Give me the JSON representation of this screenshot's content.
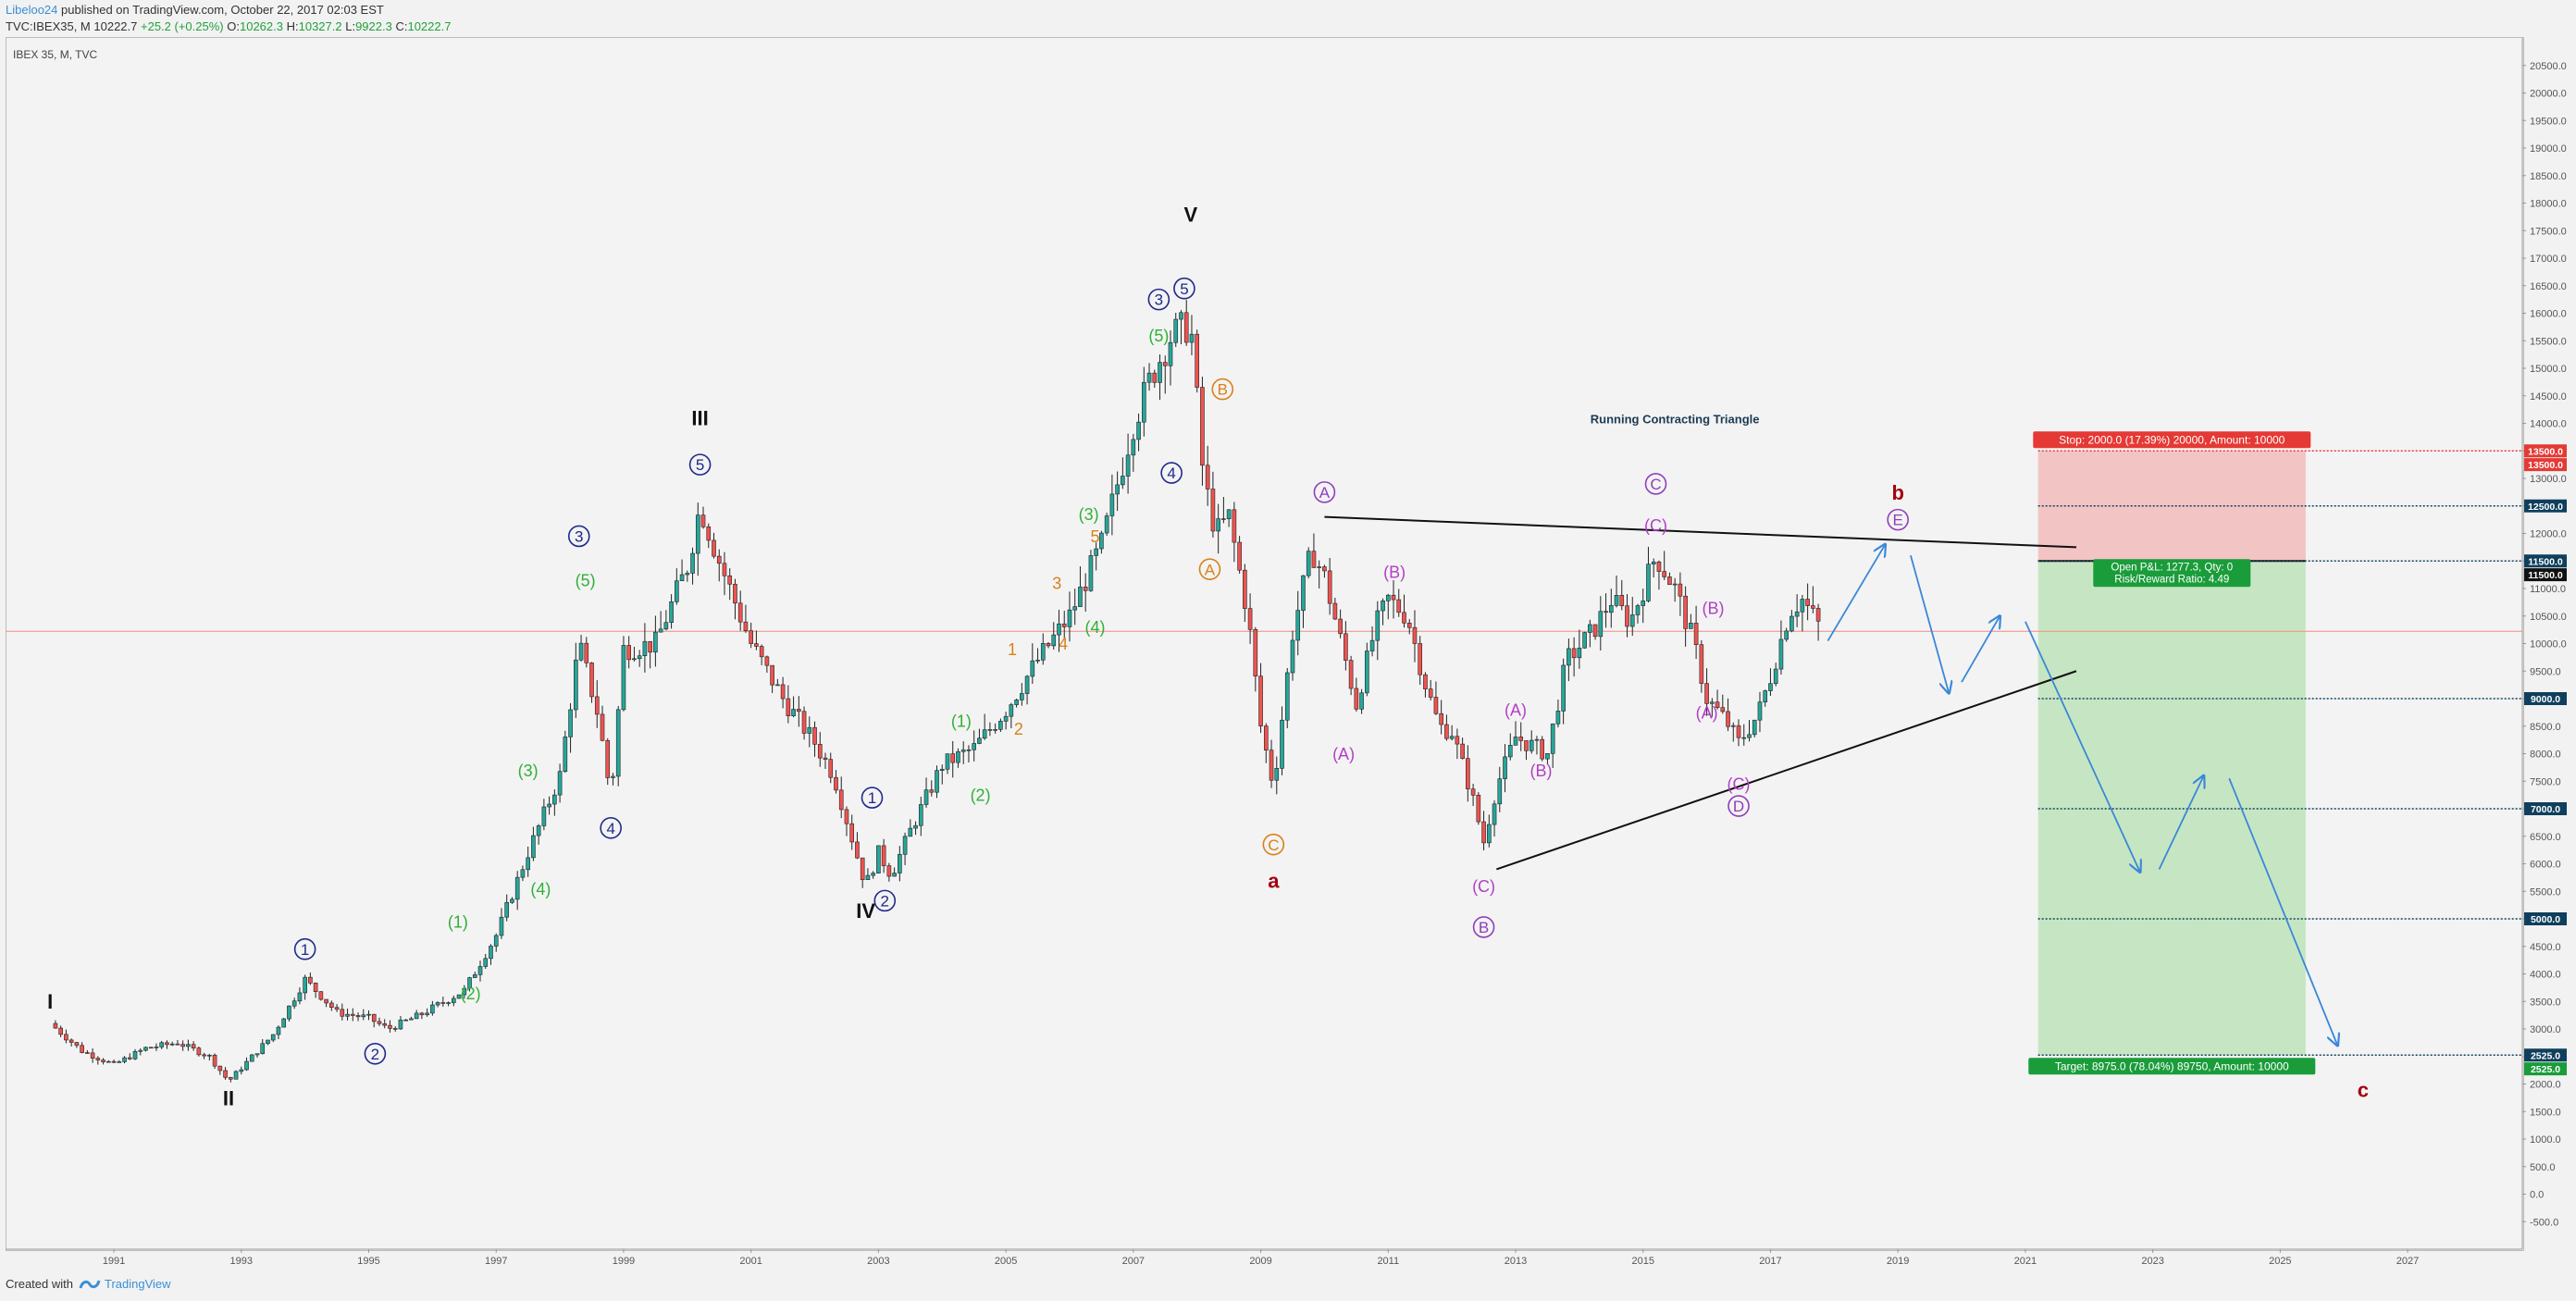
{
  "header": {
    "author": "Libeloo24",
    "published": "published on TradingView.com, October 22, 2017 02:03 EST",
    "symbol_line_prefix": "TVC:IBEX35, M",
    "last": "10222.7",
    "change": "+25.2 (+0.25%)",
    "o_label": "O:",
    "o": "10262.3",
    "h_label": "H:",
    "h": "10327.2",
    "l_label": "L:",
    "l": "9922.3",
    "c_label": "C:",
    "c": "10222.7"
  },
  "chart_label": "IBEX 35, M, TVC",
  "footer": {
    "created_with": "Created with",
    "brand": "TradingView"
  },
  "chart_data": {
    "type": "candlestick",
    "x_range": [
      1989.3,
      2028.8
    ],
    "y_range": [
      -1000,
      21000
    ],
    "x_ticks": [
      "1991",
      "1993",
      "1995",
      "1997",
      "1999",
      "2001",
      "2003",
      "2005",
      "2007",
      "2009",
      "2011",
      "2013",
      "2015",
      "2017",
      "2019",
      "2021",
      "2023",
      "2025",
      "2027"
    ],
    "y_ticks": [
      "20500.0",
      "20000.0",
      "19500.0",
      "19000.0",
      "18500.0",
      "18000.0",
      "17500.0",
      "17000.0",
      "16500.0",
      "16000.0",
      "15500.0",
      "15000.0",
      "14500.0",
      "14000.0",
      "13500.0",
      "13000.0",
      "12500.0",
      "12000.0",
      "11500.0",
      "11000.0",
      "10500.0",
      "10000.0",
      "9500.0",
      "9000.0",
      "8500.0",
      "8000.0",
      "7500.0",
      "7000.0",
      "6500.0",
      "6000.0",
      "5500.0",
      "5000.0",
      "4500.0",
      "4000.0",
      "3500.0",
      "3000.0",
      "2500.0",
      "2000.0",
      "1500.0",
      "1000.0",
      "500.0",
      "0.0",
      "-500.0"
    ],
    "price_anchors": [
      [
        1990.0,
        3100
      ],
      [
        1990.5,
        2600
      ],
      [
        1991.0,
        2350
      ],
      [
        1991.5,
        2650
      ],
      [
        1992.0,
        2750
      ],
      [
        1992.5,
        2500
      ],
      [
        1992.8,
        2050
      ],
      [
        1993.5,
        2900
      ],
      [
        1994.0,
        3900
      ],
      [
        1994.5,
        3300
      ],
      [
        1995.0,
        3200
      ],
      [
        1995.3,
        3000
      ],
      [
        1995.8,
        3250
      ],
      [
        1996.5,
        3700
      ],
      [
        1997.0,
        4700
      ],
      [
        1997.5,
        6200
      ],
      [
        1998.0,
        7600
      ],
      [
        1998.3,
        10000
      ],
      [
        1998.6,
        8700
      ],
      [
        1998.8,
        7200
      ],
      [
        1999.0,
        9900
      ],
      [
        1999.5,
        10000
      ],
      [
        2000.0,
        11400
      ],
      [
        2000.2,
        12500
      ],
      [
        2000.5,
        11500
      ],
      [
        2001.0,
        10000
      ],
      [
        2001.5,
        9000
      ],
      [
        2002.0,
        8200
      ],
      [
        2002.3,
        7600
      ],
      [
        2002.8,
        5600
      ],
      [
        2003.0,
        6200
      ],
      [
        2003.2,
        5800
      ],
      [
        2003.5,
        6600
      ],
      [
        2004.0,
        7800
      ],
      [
        2004.5,
        8100
      ],
      [
        2005.0,
        8800
      ],
      [
        2005.5,
        9700
      ],
      [
        2006.0,
        10500
      ],
      [
        2006.5,
        11800
      ],
      [
        2007.0,
        14000
      ],
      [
        2007.3,
        14900
      ],
      [
        2007.6,
        15600
      ],
      [
        2007.9,
        15800
      ],
      [
        2008.1,
        13000
      ],
      [
        2008.3,
        12000
      ],
      [
        2008.5,
        12300
      ],
      [
        2008.8,
        10500
      ],
      [
        2009.0,
        8500
      ],
      [
        2009.2,
        7400
      ],
      [
        2009.5,
        10200
      ],
      [
        2009.8,
        11700
      ],
      [
        2010.0,
        11200
      ],
      [
        2010.2,
        10300
      ],
      [
        2010.5,
        8900
      ],
      [
        2010.8,
        10300
      ],
      [
        2011.0,
        10800
      ],
      [
        2011.3,
        10500
      ],
      [
        2011.6,
        9200
      ],
      [
        2011.8,
        8500
      ],
      [
        2012.0,
        8400
      ],
      [
        2012.3,
        7300
      ],
      [
        2012.5,
        6400
      ],
      [
        2012.7,
        7400
      ],
      [
        2013.0,
        8300
      ],
      [
        2013.5,
        8000
      ],
      [
        2013.8,
        9700
      ],
      [
        2014.2,
        10200
      ],
      [
        2014.5,
        10800
      ],
      [
        2014.8,
        10400
      ],
      [
        2015.2,
        11600
      ],
      [
        2015.5,
        11000
      ],
      [
        2015.8,
        10000
      ],
      [
        2016.0,
        9000
      ],
      [
        2016.3,
        8600
      ],
      [
        2016.5,
        8200
      ],
      [
        2016.8,
        8700
      ],
      [
        2017.0,
        9400
      ],
      [
        2017.3,
        10600
      ],
      [
        2017.5,
        10800
      ],
      [
        2017.8,
        10250
      ]
    ],
    "annotations": [
      {
        "text": "I",
        "x": 1990.0,
        "y": 3500,
        "style": "bold-black"
      },
      {
        "text": "II",
        "x": 1992.8,
        "y": 1750,
        "style": "bold-black"
      },
      {
        "text": "III",
        "x": 2000.2,
        "y": 14100,
        "style": "bold-black"
      },
      {
        "text": "IV",
        "x": 2002.8,
        "y": 5150,
        "style": "bold-black"
      },
      {
        "text": "V",
        "x": 2007.9,
        "y": 17800,
        "style": "bold-black"
      },
      {
        "text": "1",
        "x": 1994.0,
        "y": 4450,
        "style": "circle-navy"
      },
      {
        "text": "2",
        "x": 1995.1,
        "y": 2550,
        "style": "circle-navy"
      },
      {
        "text": "3",
        "x": 1998.3,
        "y": 11950,
        "style": "circle-navy"
      },
      {
        "text": "4",
        "x": 1998.8,
        "y": 6650,
        "style": "circle-navy"
      },
      {
        "text": "5",
        "x": 2000.2,
        "y": 13250,
        "style": "circle-navy"
      },
      {
        "text": "1",
        "x": 2002.9,
        "y": 7200,
        "style": "circle-navy"
      },
      {
        "text": "2",
        "x": 2003.1,
        "y": 5330,
        "style": "circle-navy"
      },
      {
        "text": "3",
        "x": 2007.4,
        "y": 16250,
        "style": "circle-navy"
      },
      {
        "text": "4",
        "x": 2007.6,
        "y": 13100,
        "style": "circle-navy"
      },
      {
        "text": "5",
        "x": 2007.8,
        "y": 16450,
        "style": "circle-navy"
      },
      {
        "text": "(1)",
        "x": 1996.4,
        "y": 4950,
        "style": "green"
      },
      {
        "text": "(2)",
        "x": 1996.6,
        "y": 3650,
        "style": "green"
      },
      {
        "text": "(3)",
        "x": 1997.5,
        "y": 7700,
        "style": "green"
      },
      {
        "text": "(4)",
        "x": 1997.7,
        "y": 5550,
        "style": "green"
      },
      {
        "text": "(5)",
        "x": 1998.4,
        "y": 11150,
        "style": "green"
      },
      {
        "text": "(1)",
        "x": 2004.3,
        "y": 8600,
        "style": "green"
      },
      {
        "text": "(2)",
        "x": 2004.6,
        "y": 7250,
        "style": "green"
      },
      {
        "text": "(3)",
        "x": 2006.3,
        "y": 12350,
        "style": "green"
      },
      {
        "text": "(4)",
        "x": 2006.4,
        "y": 10300,
        "style": "green"
      },
      {
        "text": "(5)",
        "x": 2007.4,
        "y": 15600,
        "style": "green"
      },
      {
        "text": "1",
        "x": 2005.1,
        "y": 9900,
        "style": "orange"
      },
      {
        "text": "2",
        "x": 2005.2,
        "y": 8450,
        "style": "orange"
      },
      {
        "text": "3",
        "x": 2005.8,
        "y": 11100,
        "style": "orange"
      },
      {
        "text": "4",
        "x": 2005.9,
        "y": 10000,
        "style": "orange"
      },
      {
        "text": "5",
        "x": 2006.4,
        "y": 11950,
        "style": "orange"
      },
      {
        "text": "A",
        "x": 2008.2,
        "y": 11350,
        "style": "circle-orange"
      },
      {
        "text": "B",
        "x": 2008.4,
        "y": 14620,
        "style": "circle-orange"
      },
      {
        "text": "C",
        "x": 2009.2,
        "y": 6350,
        "style": "circle-orange"
      },
      {
        "text": "a",
        "x": 2009.2,
        "y": 5700,
        "style": "bold-darkred"
      },
      {
        "text": "A",
        "x": 2010.0,
        "y": 12750,
        "style": "circle-purple"
      },
      {
        "text": "(A)",
        "x": 2010.3,
        "y": 8000,
        "style": "magenta"
      },
      {
        "text": "(B)",
        "x": 2011.1,
        "y": 11300,
        "style": "magenta"
      },
      {
        "text": "(C)",
        "x": 2012.5,
        "y": 5600,
        "style": "magenta"
      },
      {
        "text": "B",
        "x": 2012.5,
        "y": 4850,
        "style": "circle-purple"
      },
      {
        "text": "(A)",
        "x": 2013.0,
        "y": 8800,
        "style": "magenta"
      },
      {
        "text": "(B)",
        "x": 2013.4,
        "y": 7700,
        "style": "magenta"
      },
      {
        "text": "C",
        "x": 2015.2,
        "y": 12900,
        "style": "circle-purple"
      },
      {
        "text": "(C)",
        "x": 2015.2,
        "y": 12150,
        "style": "magenta"
      },
      {
        "text": "(B)",
        "x": 2016.1,
        "y": 10650,
        "style": "magenta"
      },
      {
        "text": "(A)",
        "x": 2016.0,
        "y": 8750,
        "style": "magenta"
      },
      {
        "text": "(C)",
        "x": 2016.5,
        "y": 7450,
        "style": "magenta"
      },
      {
        "text": "D",
        "x": 2016.5,
        "y": 7050,
        "style": "circle-purple"
      },
      {
        "text": "E",
        "x": 2019.0,
        "y": 12250,
        "style": "circle-purple"
      },
      {
        "text": "b",
        "x": 2019.0,
        "y": 12750,
        "style": "bold-darkred"
      },
      {
        "text": "c",
        "x": 2026.3,
        "y": 1900,
        "style": "bold-darkred"
      }
    ],
    "triangle_label": "Running Contracting Triangle",
    "triangle_label_pos": [
      2015.5,
      14000
    ],
    "trendlines": [
      {
        "x1": 2010.0,
        "y1": 12300,
        "x2": 2021.8,
        "y2": 11750
      },
      {
        "x1": 2012.7,
        "y1": 5900,
        "x2": 2021.8,
        "y2": 9500
      }
    ],
    "forecast_arrows": [
      [
        [
          2017.9,
          10050
        ],
        [
          2018.8,
          11800
        ]
      ],
      [
        [
          2019.2,
          11600
        ],
        [
          2019.8,
          9100
        ]
      ],
      [
        [
          2020.0,
          9300
        ],
        [
          2020.6,
          10500
        ]
      ],
      [
        [
          2021.0,
          10400
        ],
        [
          2022.8,
          5850
        ]
      ],
      [
        [
          2023.1,
          5900
        ],
        [
          2023.8,
          7600
        ]
      ],
      [
        [
          2024.2,
          7550
        ],
        [
          2025.9,
          2700
        ]
      ]
    ],
    "horizontal_levels": [
      13500,
      12500,
      11500,
      9000,
      7000,
      5000,
      2525
    ],
    "current_price": 10222.7,
    "position": {
      "type": "short",
      "x_start": 2021.2,
      "x_end": 2025.4,
      "entry": 11500,
      "stop": 13500,
      "target": 2525,
      "stop_text": "Stop: 2000.0 (17.39%) 20000, Amount: 10000",
      "target_text": "Target: 8975.0 (78.04%) 89750, Amount: 10000",
      "pnl_text": "Open P&L: 1277.3, Qty: 0",
      "rr_text": "Risk/Reward Ratio: 4.49"
    },
    "price_tags": [
      {
        "text": "13500.0",
        "y": 13500,
        "color": "#e53935"
      },
      {
        "text": "13500.0",
        "y": 13250,
        "color": "#e53935"
      },
      {
        "text": "12500.0",
        "y": 12500,
        "color": "#0f3f5c"
      },
      {
        "text": "11500.0",
        "y": 11500,
        "color": "#0f3f5c"
      },
      {
        "text": "11500.0",
        "y": 11250,
        "color": "#111111"
      },
      {
        "text": "9000.0",
        "y": 9000,
        "color": "#0f3f5c"
      },
      {
        "text": "7000.0",
        "y": 7000,
        "color": "#0f3f5c"
      },
      {
        "text": "5000.0",
        "y": 5000,
        "color": "#0f3f5c"
      },
      {
        "text": "2525.0",
        "y": 2525,
        "color": "#0f3f5c"
      },
      {
        "text": "2525.0",
        "y": 2275,
        "color": "#1a9c3a"
      }
    ],
    "colors": {
      "up": "#26a69a",
      "down": "#ef5350",
      "navy": "#1f2a8a",
      "green": "#31b038",
      "orange": "#d9801a",
      "purple": "#8e3fb8",
      "magenta": "#b23fc6",
      "darkred": "#a5000f",
      "blue_arrow": "#3b87d8",
      "red_zone": "#f3c4c4",
      "green_zone": "#c6e6c3",
      "level": "#0f3f5c",
      "current": "#f28b82"
    }
  }
}
